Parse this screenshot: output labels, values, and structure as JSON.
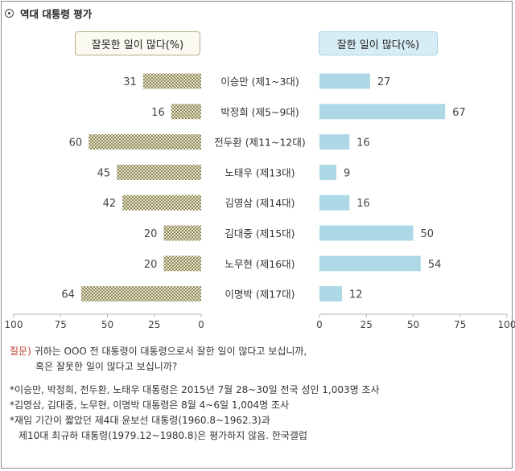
{
  "title": "역대 대통령 평가",
  "legend": {
    "negative": "잘못한 일이 많다(%)",
    "positive": "잘한 일이 많다(%)"
  },
  "colors": {
    "positive_bar": "#add8e6",
    "negative_pattern_fg": "#8d8657",
    "negative_pattern_bg": "#e9e6cf",
    "axis": "#b5b5b5",
    "question_label": "#c0392b"
  },
  "chart_data": {
    "type": "bar",
    "categories": [
      "이승만 (제1~3대)",
      "박정희 (제5~9대)",
      "전두환 (제11~12대)",
      "노태우 (제13대)",
      "김영삼 (제14대)",
      "김대중 (제15대)",
      "노무현 (제16대)",
      "이명박 (제17대)"
    ],
    "series": [
      {
        "name": "잘못한 일이 많다(%)",
        "values": [
          31,
          16,
          60,
          45,
          42,
          20,
          20,
          64
        ]
      },
      {
        "name": "잘한 일이 많다(%)",
        "values": [
          27,
          67,
          16,
          9,
          16,
          50,
          54,
          12
        ]
      }
    ],
    "negative_axis": {
      "ticks": [
        "100",
        "75",
        "50",
        "25",
        "0"
      ],
      "range": [
        0,
        100
      ]
    },
    "positive_axis": {
      "ticks": [
        "0",
        "25",
        "50",
        "75",
        "100"
      ],
      "range": [
        0,
        100
      ]
    },
    "grid": false
  },
  "notes": {
    "question_label": "질문)",
    "question_line1": " 귀하는 OOO 전 대통령이 대통령으로서 잘한 일이 많다고 보십니까,",
    "question_line2": "혹은 잘못한 일이 많다고 보십니까?",
    "footnote1": "*이승만, 박정희, 전두환, 노태우 대통령은 2015년 7월 28~30일 전국 성인 1,003명 조사",
    "footnote2": "*김영삼, 김대중, 노무현, 이명박 대통령은 8월 4~6일 1,004명 조사",
    "footnote3a": "*재임 기간이 짧았던 제4대 윤보선 대통령(1960.8~1962.3)과",
    "footnote3b": "제10대 최규하 대통령(1979.12~1980.8)은 평가하지 않음. 한국갤럽"
  }
}
